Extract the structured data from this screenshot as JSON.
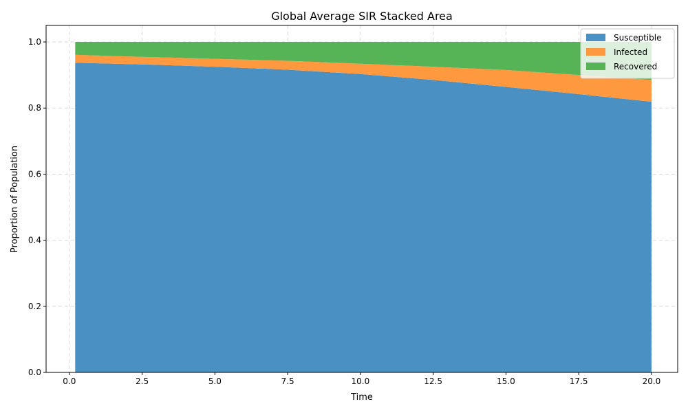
{
  "chart_data": {
    "type": "area",
    "stacked": true,
    "title": "Global Average SIR Stacked Area",
    "xlabel": "Time",
    "ylabel": "Proportion of Population",
    "xlim": [
      -0.8,
      20.9
    ],
    "ylim": [
      0.0,
      1.05
    ],
    "xticks": [
      0.0,
      2.5,
      5.0,
      7.5,
      10.0,
      12.5,
      15.0,
      17.5,
      20.0
    ],
    "xtick_labels": [
      "0.0",
      "2.5",
      "5.0",
      "7.5",
      "10.0",
      "12.5",
      "15.0",
      "17.5",
      "20.0"
    ],
    "yticks": [
      0.0,
      0.2,
      0.4,
      0.6,
      0.8,
      1.0
    ],
    "ytick_labels": [
      "0.0",
      "0.2",
      "0.4",
      "0.6",
      "0.8",
      "1.0"
    ],
    "grid": true,
    "legend_position": "top-right",
    "x": [
      0.2,
      2.5,
      5.0,
      7.5,
      10.0,
      12.5,
      15.0,
      17.5,
      20.0
    ],
    "series": [
      {
        "name": "Susceptible",
        "color": "#4a90c2",
        "values": [
          0.937,
          0.932,
          0.925,
          0.916,
          0.903,
          0.885,
          0.864,
          0.842,
          0.819
        ]
      },
      {
        "name": "Infected",
        "color": "#ff9940",
        "values": [
          0.024,
          0.023,
          0.024,
          0.027,
          0.031,
          0.04,
          0.051,
          0.058,
          0.066
        ]
      },
      {
        "name": "Recovered",
        "color": "#56b356",
        "values": [
          0.039,
          0.045,
          0.051,
          0.057,
          0.066,
          0.075,
          0.085,
          0.1,
          0.115
        ]
      }
    ]
  }
}
